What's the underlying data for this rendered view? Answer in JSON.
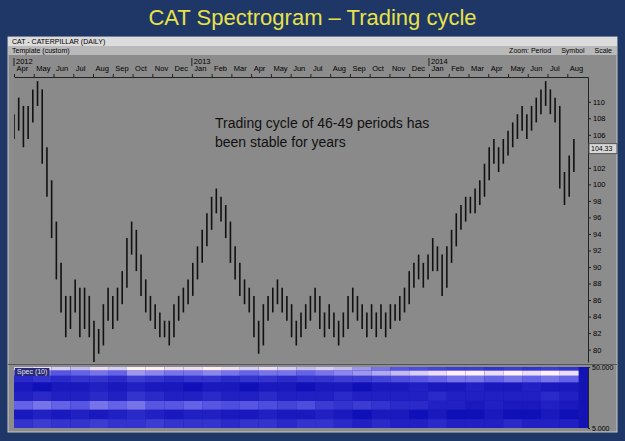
{
  "slide": {
    "title": "CAT Spectrogram – Trading cycle"
  },
  "toolbar": {
    "left": "Template (custom)",
    "right": [
      "Zoom: Period",
      "Symbol",
      "Scale"
    ]
  },
  "chart_data": [
    {
      "type": "ohlc",
      "title": "CAT - CATERPILLAR (DAILY)",
      "annotation": "Trading cycle of 46-49 periods has been stable for years",
      "color": "#111111",
      "grid": false,
      "x": [
        0,
        5,
        10,
        15,
        20,
        25,
        30,
        35,
        40,
        45,
        50,
        55,
        60,
        65,
        70,
        75,
        80,
        85,
        90,
        95,
        100,
        105,
        110,
        115,
        120,
        125,
        130,
        135,
        140,
        145,
        150,
        155,
        160,
        165,
        170,
        175,
        180,
        185,
        190,
        195,
        200,
        205,
        210,
        215,
        220,
        225,
        230,
        235,
        240,
        245,
        250,
        255,
        260,
        265,
        270,
        275,
        280,
        285,
        290,
        295,
        300,
        305,
        310,
        315,
        320,
        325,
        330,
        335,
        340,
        345,
        350,
        355,
        360,
        365,
        370,
        375,
        380,
        385,
        390,
        395,
        400,
        405,
        410,
        415,
        420,
        425,
        430,
        435,
        440,
        445,
        450,
        455,
        460,
        465,
        470,
        475,
        480,
        485,
        490,
        495,
        500,
        505,
        510,
        515,
        520,
        525,
        530,
        535,
        540,
        545,
        550,
        555,
        560,
        565,
        570,
        575,
        580,
        585,
        590,
        595
      ],
      "high": [
        108.5,
        110.5,
        109.5,
        109.5,
        111.5,
        112.5,
        111.5,
        104.5,
        100.5,
        95.5,
        90.5,
        86.5,
        86.5,
        88.5,
        87.5,
        87.5,
        86.5,
        83.5,
        82.5,
        85.5,
        87.5,
        86.5,
        87.5,
        89.5,
        93.5,
        95.5,
        94.5,
        91.5,
        88.5,
        86.5,
        85.5,
        84.5,
        83.5,
        83.5,
        85.5,
        86.5,
        87.5,
        88.5,
        90.5,
        92.5,
        94.5,
        96.5,
        98.5,
        99.5,
        98.5,
        97.5,
        95.5,
        92.5,
        90.5,
        88.5,
        87.5,
        86.5,
        83.5,
        85.5,
        86.5,
        87.5,
        88.5,
        87.5,
        86.5,
        85.5,
        83.5,
        84.5,
        85.5,
        86.5,
        87.5,
        86.5,
        84.5,
        85.5,
        84.5,
        83.5,
        84.5,
        86.5,
        87.5,
        86.5,
        85.5,
        84.5,
        85.5,
        84.5,
        85.5,
        84.5,
        85.5,
        85.5,
        86.5,
        87.5,
        89.5,
        90.5,
        91.5,
        90.5,
        91.5,
        93.5,
        92.5,
        91.5,
        92.5,
        94.5,
        96.5,
        97.5,
        98.5,
        98.5,
        99.5,
        100.5,
        102.5,
        104.5,
        105.5,
        104.5,
        105.5,
        106.5,
        107.5,
        108.5,
        109.5,
        108.5,
        109.5,
        110.5,
        111.5,
        112.5,
        111.5,
        110.5,
        109.5,
        101.5,
        103.5,
        105.5
      ],
      "low": [
        105.5,
        106.5,
        104.5,
        105.5,
        107.5,
        109.5,
        102.5,
        98.5,
        93.5,
        88.5,
        84.5,
        81.5,
        82.5,
        84.5,
        81.5,
        82.5,
        81.5,
        78.5,
        79.5,
        80.5,
        83.5,
        82.5,
        83.5,
        85.5,
        87.5,
        91.5,
        89.5,
        86.5,
        84.5,
        83.5,
        82.5,
        81.5,
        81.5,
        80.5,
        81.5,
        83.5,
        84.5,
        85.5,
        86.5,
        88.5,
        90.5,
        92.5,
        94.5,
        96.5,
        95.5,
        93.5,
        90.5,
        88.5,
        86.5,
        85.5,
        84.5,
        81.5,
        79.5,
        80.5,
        83.5,
        84.5,
        85.5,
        84.5,
        83.5,
        81.5,
        80.5,
        81.5,
        82.5,
        83.5,
        84.5,
        82.5,
        81.5,
        82.5,
        81.5,
        80.5,
        81.5,
        82.5,
        84.5,
        83.5,
        82.5,
        81.5,
        82.5,
        81.5,
        82.5,
        81.5,
        82.5,
        83.5,
        83.5,
        84.5,
        85.5,
        87.5,
        88.5,
        87.5,
        88.5,
        89.5,
        89.5,
        86.5,
        87.5,
        90.5,
        92.5,
        94.5,
        95.5,
        96.5,
        96.5,
        97.5,
        98.5,
        100.5,
        102.5,
        101.5,
        102.5,
        103.5,
        104.5,
        105.5,
        106.5,
        105.5,
        106.5,
        107.5,
        108.5,
        109.5,
        108.5,
        107.5,
        99.5,
        97.5,
        98.5,
        101.5
      ],
      "xlim": [
        0,
        610
      ],
      "xticks": [
        {
          "value": 0,
          "label": "Apr"
        },
        {
          "value": 21,
          "label": "May"
        },
        {
          "value": 42,
          "label": "Jun"
        },
        {
          "value": 63,
          "label": "Jul"
        },
        {
          "value": 84,
          "label": "Aug"
        },
        {
          "value": 105,
          "label": "Sep"
        },
        {
          "value": 126,
          "label": "Oct"
        },
        {
          "value": 147,
          "label": "Nov"
        },
        {
          "value": 168,
          "label": "Dec"
        },
        {
          "value": 189,
          "label": "Jan"
        },
        {
          "value": 210,
          "label": "Feb"
        },
        {
          "value": 231,
          "label": "Mar"
        },
        {
          "value": 252,
          "label": "Apr"
        },
        {
          "value": 273,
          "label": "May"
        },
        {
          "value": 294,
          "label": "Jun"
        },
        {
          "value": 315,
          "label": "Jul"
        },
        {
          "value": 336,
          "label": "Aug"
        },
        {
          "value": 357,
          "label": "Sep"
        },
        {
          "value": 378,
          "label": "Oct"
        },
        {
          "value": 399,
          "label": "Nov"
        },
        {
          "value": 420,
          "label": "Dec"
        },
        {
          "value": 441,
          "label": "Jan"
        },
        {
          "value": 462,
          "label": "Feb"
        },
        {
          "value": 483,
          "label": "Mar"
        },
        {
          "value": 504,
          "label": "Apr"
        },
        {
          "value": 525,
          "label": "May"
        },
        {
          "value": 546,
          "label": "Jun"
        },
        {
          "value": 567,
          "label": "Jul"
        },
        {
          "value": 588,
          "label": "Aug"
        }
      ],
      "x_year_ticks": [
        {
          "value": 0,
          "label": "2012"
        },
        {
          "value": 189,
          "label": "2013"
        },
        {
          "value": 441,
          "label": "2014"
        }
      ],
      "ylim": [
        78.5,
        113
      ],
      "yticks": [
        80,
        82,
        84,
        86,
        88,
        90,
        92,
        94,
        96,
        98,
        100,
        102,
        106,
        108,
        110
      ],
      "last_value": 104.33
    },
    {
      "type": "heatmap",
      "title": "Spec (10)",
      "log": "y",
      "tick_labels": "y",
      "xlim": [
        0,
        610
      ],
      "x_bins": [
        0,
        20,
        40,
        60,
        80,
        100,
        120,
        140,
        160,
        180,
        200,
        220,
        240,
        260,
        280,
        300,
        320,
        340,
        360,
        380,
        400,
        420,
        440,
        460,
        480,
        500,
        520,
        540,
        560,
        580,
        600
      ],
      "period_bins": [
        5,
        7,
        10,
        14,
        20,
        28,
        36,
        44,
        50
      ],
      "cells": [
        [
          0.3,
          0.35,
          0.3,
          0.3,
          0.35,
          0.3,
          0.3,
          0.35,
          0.3,
          0.3,
          0.3,
          0.25,
          0.3,
          0.3,
          0.25,
          0.3,
          0.3,
          0.25,
          0.2,
          0.25,
          0.2,
          0.2,
          0.25,
          0.2,
          0.2,
          0.2,
          0.25,
          0.2,
          0.2,
          0.2
        ],
        [
          0.15,
          0.2,
          0.15,
          0.2,
          0.15,
          0.2,
          0.25,
          0.2,
          0.15,
          0.2,
          0.2,
          0.15,
          0.15,
          0.2,
          0.15,
          0.15,
          0.2,
          0.15,
          0.1,
          0.15,
          0.15,
          0.1,
          0.15,
          0.1,
          0.1,
          0.15,
          0.1,
          0.1,
          0.15,
          0.1
        ],
        [
          0.55,
          0.6,
          0.55,
          0.5,
          0.6,
          0.55,
          0.6,
          0.5,
          0.5,
          0.55,
          0.5,
          0.45,
          0.5,
          0.45,
          0.4,
          0.45,
          0.35,
          0.3,
          0.35,
          0.3,
          0.25,
          0.25,
          0.2,
          0.2,
          0.15,
          0.2,
          0.15,
          0.15,
          0.2,
          0.15
        ],
        [
          0.2,
          0.25,
          0.2,
          0.2,
          0.25,
          0.2,
          0.3,
          0.25,
          0.2,
          0.2,
          0.25,
          0.2,
          0.2,
          0.25,
          0.2,
          0.2,
          0.2,
          0.25,
          0.2,
          0.2,
          0.2,
          0.2,
          0.25,
          0.2,
          0.2,
          0.2,
          0.2,
          0.2,
          0.25,
          0.2
        ],
        [
          0.15,
          0.1,
          0.15,
          0.15,
          0.2,
          0.15,
          0.2,
          0.15,
          0.15,
          0.1,
          0.15,
          0.15,
          0.1,
          0.15,
          0.15,
          0.1,
          0.15,
          0.15,
          0.1,
          0.15,
          0.15,
          0.2,
          0.15,
          0.15,
          0.2,
          0.15,
          0.15,
          0.2,
          0.15,
          0.15
        ],
        [
          0.25,
          0.3,
          0.25,
          0.3,
          0.3,
          0.25,
          0.35,
          0.3,
          0.25,
          0.3,
          0.3,
          0.25,
          0.3,
          0.3,
          0.25,
          0.3,
          0.3,
          0.35,
          0.35,
          0.4,
          0.45,
          0.5,
          0.55,
          0.6,
          0.6,
          0.55,
          0.6,
          0.55,
          0.6,
          0.55
        ],
        [
          0.55,
          0.6,
          0.5,
          0.55,
          0.6,
          0.55,
          0.7,
          0.65,
          0.6,
          0.6,
          0.65,
          0.6,
          0.55,
          0.6,
          0.6,
          0.55,
          0.6,
          0.65,
          0.7,
          0.75,
          0.8,
          0.85,
          0.9,
          0.95,
          0.95,
          0.9,
          0.95,
          0.9,
          0.95,
          0.9
        ],
        [
          0.85,
          0.9,
          0.85,
          0.8,
          0.9,
          0.85,
          0.95,
          0.95,
          0.9,
          0.9,
          0.95,
          0.9,
          0.85,
          0.9,
          0.85,
          0.8,
          0.85,
          0.8,
          0.7,
          0.6,
          0.5,
          0.45,
          0.4,
          0.35,
          0.35,
          0.3,
          0.35,
          0.3,
          0.35,
          0.3
        ]
      ],
      "ylim": [
        5,
        50
      ],
      "yticks": [
        {
          "value": 5,
          "label": "5.000"
        },
        {
          "value": 50,
          "label": "50.000"
        }
      ]
    }
  ]
}
